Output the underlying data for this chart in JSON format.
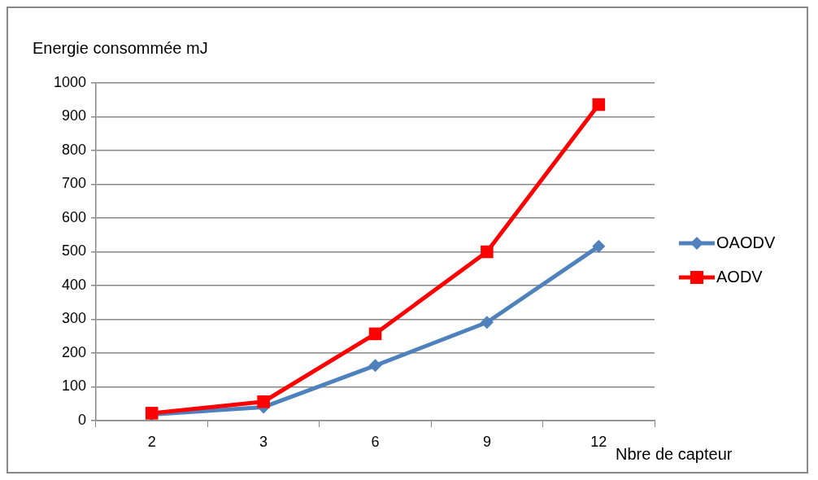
{
  "chart_data": {
    "type": "line",
    "ylabel": "Energie consommée mJ",
    "xlabel": "Nbre de capteur",
    "categories": [
      "2",
      "3",
      "6",
      "9",
      "12"
    ],
    "series": [
      {
        "name": "OAODV",
        "color": "#4f81bd",
        "marker": "diamond",
        "values": [
          18,
          40,
          163,
          291,
          516
        ]
      },
      {
        "name": "AODV",
        "color": "#ff0000",
        "marker": "square",
        "values": [
          22,
          56,
          257,
          500,
          936
        ]
      }
    ],
    "ylim": [
      0,
      1000
    ],
    "yticks": [
      0,
      100,
      200,
      300,
      400,
      500,
      600,
      700,
      800,
      900,
      1000
    ],
    "grid": "y",
    "legend": "right",
    "line_style": "solid"
  }
}
